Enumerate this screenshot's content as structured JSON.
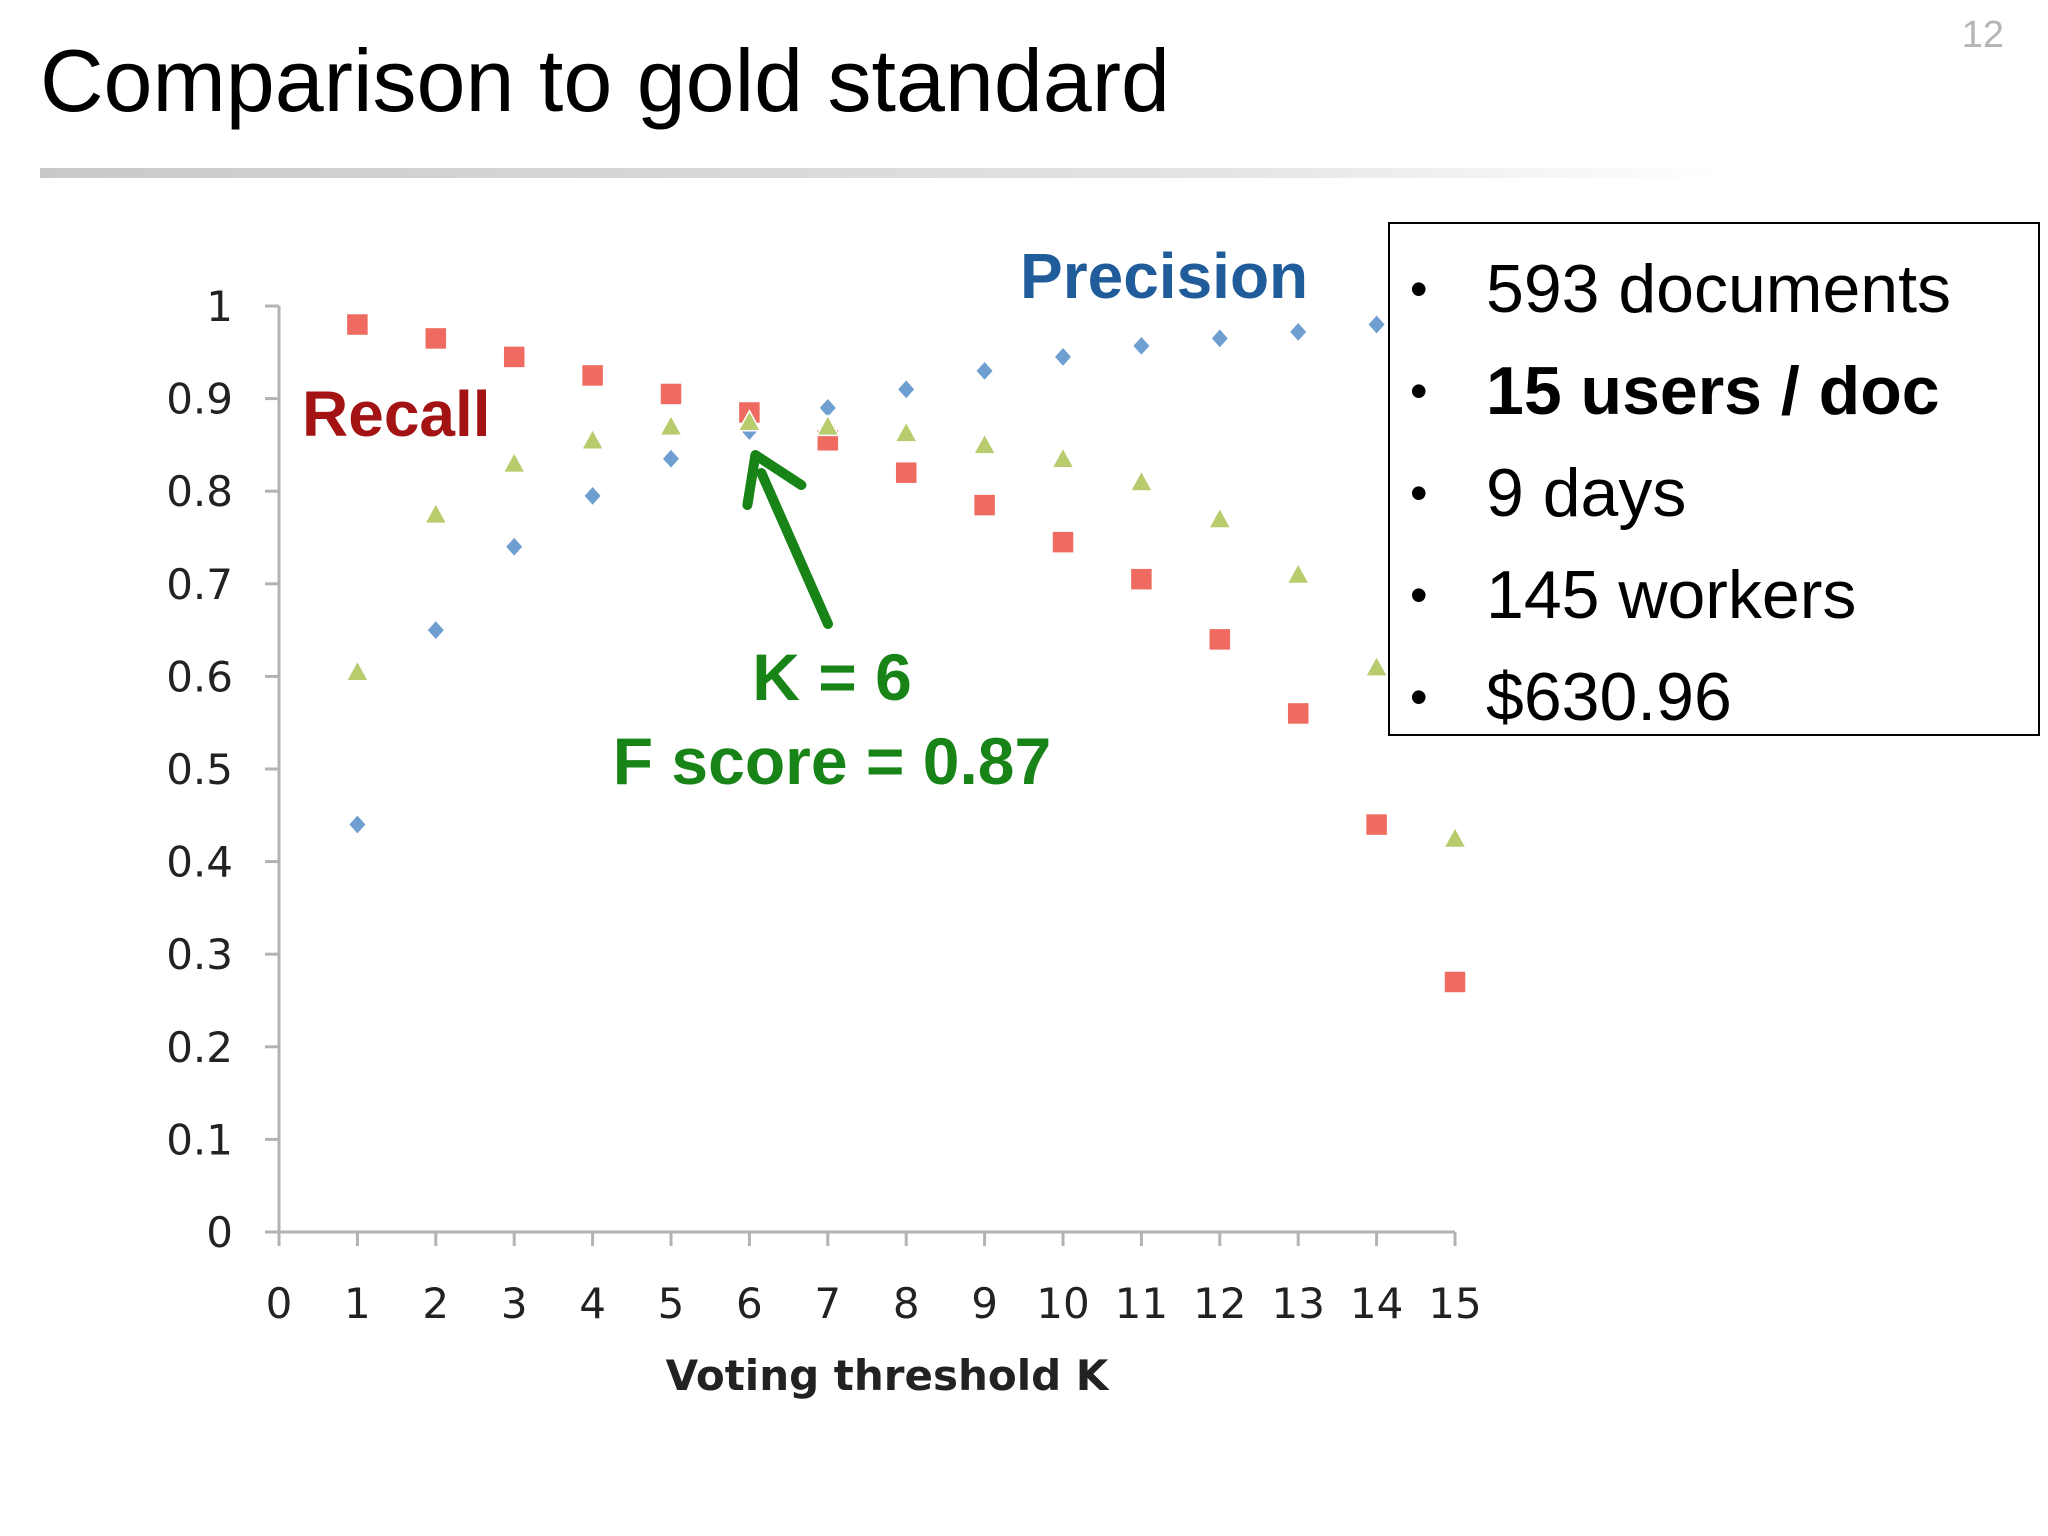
{
  "slide": {
    "title": "Comparison to gold standard",
    "number": "12"
  },
  "stats": {
    "items": [
      {
        "text": "593 documents",
        "bold": false
      },
      {
        "text": "15 users / doc",
        "bold": true
      },
      {
        "text": "9 days",
        "bold": false
      },
      {
        "text": "145 workers",
        "bold": false
      },
      {
        "text": "$630.96",
        "bold": false
      }
    ]
  },
  "chart_data": {
    "type": "scatter",
    "title": "",
    "xlabel": "Voting threshold K",
    "ylabel": "",
    "xlim": [
      0,
      15
    ],
    "ylim": [
      0,
      1
    ],
    "x_ticks": [
      "0",
      "1",
      "2",
      "3",
      "4",
      "5",
      "6",
      "7",
      "8",
      "9",
      "10",
      "11",
      "12",
      "13",
      "14",
      "15"
    ],
    "y_ticks": [
      "0",
      "0.1",
      "0.2",
      "0.3",
      "0.4",
      "0.5",
      "0.6",
      "0.7",
      "0.8",
      "0.9",
      "1"
    ],
    "grid": false,
    "x": [
      1,
      2,
      3,
      4,
      5,
      6,
      7,
      8,
      9,
      10,
      11,
      12,
      13,
      14,
      15
    ],
    "series": [
      {
        "name": "Precision",
        "marker": "diamond",
        "color": "#6f9fd0",
        "label_color": "#1f5c99",
        "values": [
          0.44,
          0.65,
          0.74,
          0.795,
          0.835,
          0.865,
          0.89,
          0.91,
          0.93,
          0.945,
          0.957,
          0.965,
          0.972,
          0.98,
          null
        ]
      },
      {
        "name": "Recall",
        "marker": "square",
        "color": "#ef6b61",
        "label_color": "#a31313",
        "values": [
          0.98,
          0.965,
          0.945,
          0.925,
          0.905,
          0.885,
          0.855,
          0.82,
          0.785,
          0.745,
          0.705,
          0.64,
          0.56,
          0.44,
          0.27
        ]
      },
      {
        "name": "",
        "marker": "triangle",
        "color": "#b8cc6e",
        "values": [
          0.605,
          0.775,
          0.83,
          0.855,
          0.87,
          0.875,
          0.87,
          0.863,
          0.85,
          0.835,
          0.81,
          0.77,
          0.71,
          0.61,
          0.425
        ]
      }
    ],
    "annotations": {
      "k_label": "K = 6",
      "f_label": "F score = 0.87",
      "color": "#188418",
      "arrow_target": {
        "x": 6,
        "y": 0.865
      }
    }
  }
}
